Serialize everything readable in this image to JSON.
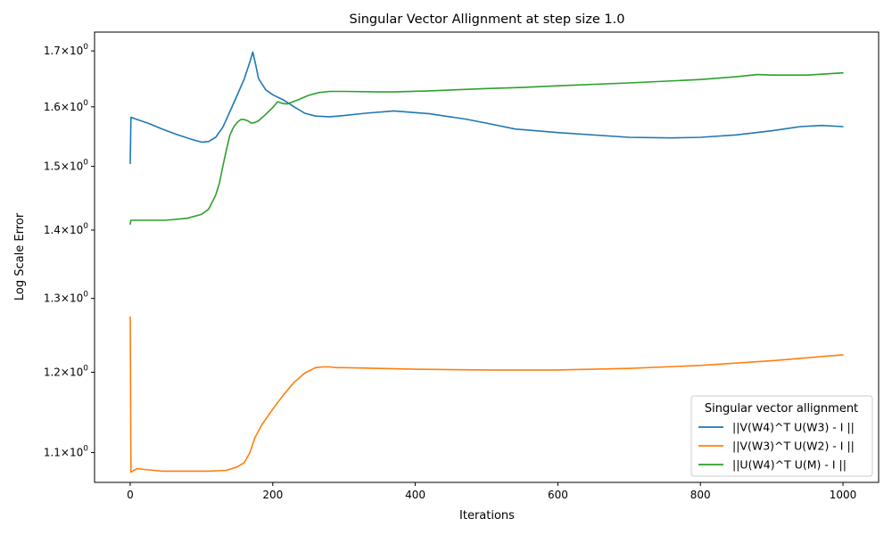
{
  "chart_data": {
    "type": "line",
    "title": "Singular Vector Allignment at step size 1.0",
    "xlabel": "Iterations",
    "ylabel": "Log Scale Error",
    "yscale": "log",
    "xlim": [
      -50,
      1050
    ],
    "ylim": [
      1.065,
      1.735
    ],
    "xticks": [
      0,
      200,
      400,
      600,
      800,
      1000
    ],
    "yticks": [
      {
        "value": 1.1,
        "mantissa": "1.1",
        "base": "10",
        "exp": "0"
      },
      {
        "value": 1.2,
        "mantissa": "1.2",
        "base": "10",
        "exp": "0"
      },
      {
        "value": 1.3,
        "mantissa": "1.3",
        "base": "10",
        "exp": "0"
      },
      {
        "value": 1.4,
        "mantissa": "1.4",
        "base": "10",
        "exp": "0"
      },
      {
        "value": 1.5,
        "mantissa": "1.5",
        "base": "10",
        "exp": "0"
      },
      {
        "value": 1.6,
        "mantissa": "1.6",
        "base": "10",
        "exp": "0"
      },
      {
        "value": 1.7,
        "mantissa": "1.7",
        "base": "10",
        "exp": "0"
      }
    ],
    "legend": {
      "title": "Singular vector allignment",
      "position": "lower right"
    },
    "grid": false,
    "series": [
      {
        "name": "||V(W4)^T U(W3) - I ||",
        "color": "#1f77b4",
        "points": [
          [
            0,
            1.505
          ],
          [
            1,
            1.582
          ],
          [
            10,
            1.578
          ],
          [
            25,
            1.572
          ],
          [
            45,
            1.562
          ],
          [
            65,
            1.553
          ],
          [
            85,
            1.545
          ],
          [
            100,
            1.54
          ],
          [
            110,
            1.541
          ],
          [
            120,
            1.548
          ],
          [
            130,
            1.565
          ],
          [
            140,
            1.592
          ],
          [
            150,
            1.62
          ],
          [
            160,
            1.649
          ],
          [
            168,
            1.68
          ],
          [
            172,
            1.698
          ],
          [
            176,
            1.675
          ],
          [
            180,
            1.65
          ],
          [
            190,
            1.63
          ],
          [
            200,
            1.621
          ],
          [
            215,
            1.612
          ],
          [
            230,
            1.6
          ],
          [
            245,
            1.589
          ],
          [
            260,
            1.584
          ],
          [
            280,
            1.583
          ],
          [
            300,
            1.585
          ],
          [
            330,
            1.589
          ],
          [
            370,
            1.593
          ],
          [
            420,
            1.588
          ],
          [
            470,
            1.579
          ],
          [
            500,
            1.572
          ],
          [
            540,
            1.562
          ],
          [
            600,
            1.556
          ],
          [
            700,
            1.548
          ],
          [
            760,
            1.547
          ],
          [
            800,
            1.548
          ],
          [
            850,
            1.552
          ],
          [
            900,
            1.559
          ],
          [
            940,
            1.566
          ],
          [
            970,
            1.568
          ],
          [
            1000,
            1.566
          ]
        ]
      },
      {
        "name": "||V(W3)^T U(W2) - I ||",
        "color": "#ff7f0e",
        "points": [
          [
            0,
            1.274
          ],
          [
            1,
            1.077
          ],
          [
            5,
            1.079
          ],
          [
            10,
            1.081
          ],
          [
            20,
            1.08
          ],
          [
            45,
            1.078
          ],
          [
            80,
            1.078
          ],
          [
            110,
            1.078
          ],
          [
            135,
            1.079
          ],
          [
            150,
            1.083
          ],
          [
            160,
            1.088
          ],
          [
            168,
            1.1
          ],
          [
            175,
            1.118
          ],
          [
            185,
            1.134
          ],
          [
            200,
            1.153
          ],
          [
            215,
            1.171
          ],
          [
            230,
            1.187
          ],
          [
            245,
            1.199
          ],
          [
            260,
            1.206
          ],
          [
            270,
            1.207
          ],
          [
            280,
            1.207
          ],
          [
            290,
            1.206
          ],
          [
            300,
            1.206
          ],
          [
            350,
            1.205
          ],
          [
            400,
            1.204
          ],
          [
            500,
            1.203
          ],
          [
            600,
            1.203
          ],
          [
            700,
            1.205
          ],
          [
            800,
            1.209
          ],
          [
            900,
            1.215
          ],
          [
            1000,
            1.223
          ]
        ]
      },
      {
        "name": "||U(W4)^T U(M) - I ||",
        "color": "#2ca02c",
        "points": [
          [
            0,
            1.409
          ],
          [
            1,
            1.415
          ],
          [
            10,
            1.415
          ],
          [
            50,
            1.415
          ],
          [
            80,
            1.418
          ],
          [
            100,
            1.424
          ],
          [
            110,
            1.432
          ],
          [
            120,
            1.454
          ],
          [
            125,
            1.472
          ],
          [
            130,
            1.5
          ],
          [
            135,
            1.527
          ],
          [
            140,
            1.552
          ],
          [
            145,
            1.565
          ],
          [
            150,
            1.573
          ],
          [
            155,
            1.578
          ],
          [
            160,
            1.578
          ],
          [
            165,
            1.576
          ],
          [
            170,
            1.572
          ],
          [
            175,
            1.573
          ],
          [
            180,
            1.576
          ],
          [
            190,
            1.587
          ],
          [
            200,
            1.599
          ],
          [
            207,
            1.609
          ],
          [
            213,
            1.606
          ],
          [
            220,
            1.605
          ],
          [
            235,
            1.612
          ],
          [
            250,
            1.62
          ],
          [
            265,
            1.625
          ],
          [
            280,
            1.627
          ],
          [
            300,
            1.627
          ],
          [
            350,
            1.626
          ],
          [
            370,
            1.626
          ],
          [
            420,
            1.628
          ],
          [
            500,
            1.632
          ],
          [
            550,
            1.634
          ],
          [
            600,
            1.637
          ],
          [
            700,
            1.642
          ],
          [
            800,
            1.648
          ],
          [
            850,
            1.653
          ],
          [
            880,
            1.657
          ],
          [
            900,
            1.656
          ],
          [
            950,
            1.656
          ],
          [
            1000,
            1.66
          ]
        ]
      }
    ]
  }
}
